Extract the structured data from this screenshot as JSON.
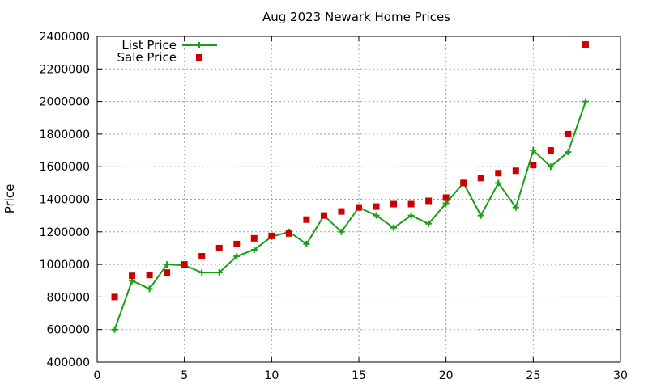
{
  "chart_data": {
    "type": "line",
    "title": "Aug 2023 Newark Home Prices",
    "xlabel": "",
    "ylabel": "Price",
    "xlim": [
      0,
      30
    ],
    "ylim": [
      400000,
      2400000
    ],
    "xticks": [
      0,
      5,
      10,
      15,
      20,
      25,
      30
    ],
    "yticks": [
      400000,
      600000,
      800000,
      1000000,
      1200000,
      1400000,
      1600000,
      1800000,
      2000000,
      2200000,
      2400000
    ],
    "grid": true,
    "legend_position": "top-left",
    "series": [
      {
        "name": "List Price",
        "style": "line+cross",
        "color": "#1a9e1a",
        "x": [
          1,
          2,
          3,
          4,
          5,
          6,
          7,
          8,
          9,
          10,
          11,
          12,
          13,
          14,
          15,
          16,
          17,
          18,
          19,
          20,
          21,
          22,
          23,
          24,
          25,
          26,
          27,
          28
        ],
        "y": [
          600000,
          900000,
          850000,
          1000000,
          995000,
          950000,
          950000,
          1050000,
          1090000,
          1170000,
          1200000,
          1125000,
          1300000,
          1200000,
          1350000,
          1300000,
          1225000,
          1300000,
          1250000,
          1375000,
          1500000,
          1300000,
          1500000,
          1350000,
          1700000,
          1600000,
          1690000,
          2000000
        ]
      },
      {
        "name": "Sale Price",
        "style": "square",
        "color": "#cc0000",
        "x": [
          1,
          2,
          3,
          4,
          5,
          6,
          7,
          8,
          9,
          10,
          11,
          12,
          13,
          14,
          15,
          16,
          17,
          18,
          19,
          20,
          21,
          22,
          23,
          24,
          25,
          26,
          27,
          28
        ],
        "y": [
          800000,
          930000,
          935000,
          950000,
          1000000,
          1050000,
          1100000,
          1125000,
          1160000,
          1175000,
          1190000,
          1275000,
          1300000,
          1325000,
          1350000,
          1355000,
          1370000,
          1370000,
          1390000,
          1410000,
          1500000,
          1530000,
          1560000,
          1575000,
          1610000,
          1700000,
          1800000,
          2350000
        ]
      }
    ]
  }
}
